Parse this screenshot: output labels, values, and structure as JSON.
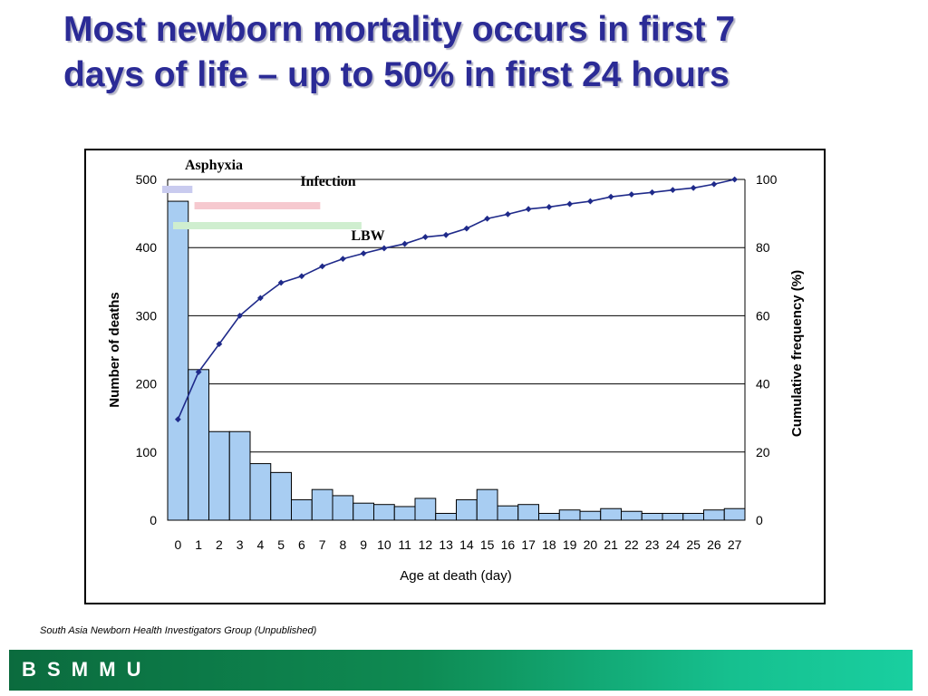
{
  "slide": {
    "title_line1": "Most newborn mortality occurs in first 7",
    "title_line2": "days of life – up to 50% in first 24 hours",
    "source": "South Asia Newborn Health Investigators Group (Unpublished)",
    "footer": "B S M M U"
  },
  "chart_data": {
    "type": "bar",
    "xlabel": "Age at death (day)",
    "ylabel": "Number of deaths",
    "y2label": "Cumulative frequency (%)",
    "ylim": [
      0,
      500
    ],
    "y2lim": [
      0,
      100
    ],
    "yticks": [
      0,
      100,
      200,
      300,
      400,
      500
    ],
    "y2ticks": [
      0,
      20,
      40,
      60,
      80,
      100
    ],
    "grid": true,
    "categories": [
      "0",
      "1",
      "2",
      "3",
      "4",
      "5",
      "6",
      "7",
      "8",
      "9",
      "10",
      "11",
      "12",
      "13",
      "14",
      "15",
      "16",
      "17",
      "18",
      "19",
      "20",
      "21",
      "22",
      "23",
      "24",
      "25",
      "26",
      "27"
    ],
    "series": [
      {
        "type": "bar",
        "axis": "left",
        "color": "#a8cdf2",
        "values": [
          468,
          221,
          130,
          130,
          83,
          70,
          30,
          45,
          36,
          25,
          23,
          20,
          32,
          10,
          30,
          45,
          21,
          23,
          10,
          15,
          13,
          17,
          13,
          10,
          10,
          10,
          15,
          17
        ]
      },
      {
        "type": "line",
        "axis": "right",
        "color": "#1f2a8a",
        "values": [
          29.6,
          43.5,
          51.7,
          60,
          65.2,
          69.7,
          71.6,
          74.5,
          76.7,
          78.3,
          79.8,
          81.1,
          83.1,
          83.7,
          85.6,
          88.5,
          89.8,
          91.3,
          91.9,
          92.8,
          93.6,
          94.9,
          95.6,
          96.2,
          96.9,
          97.5,
          98.6,
          100
        ]
      }
    ],
    "annotations": [
      {
        "label": "Asphyxia",
        "start": 0,
        "end": 1.2,
        "color": "#c9cbef"
      },
      {
        "label": "Infection",
        "start": 1.3,
        "end": 7.4,
        "color": "#f6c9cf"
      },
      {
        "label": "LBW",
        "start": 0,
        "end": 9.4,
        "color": "#cfeecf"
      }
    ]
  }
}
